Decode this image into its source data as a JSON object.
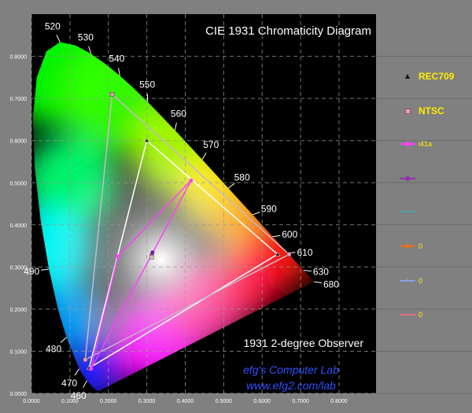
{
  "chart_data": {
    "type": "scatter",
    "title": "CIE 1931 Chromaticity Diagram",
    "subtitle": "1931 2-degree Observer",
    "credit": "efg's Computer Lab",
    "credit_url": "www.efg2.com/lab",
    "x_ticks": [
      "0.0000",
      "0.1000",
      "0.2000",
      "0.3000",
      "0.4000",
      "0.5000",
      "0.6000",
      "0.7000",
      "0.8000"
    ],
    "y_ticks": [
      "0.0000",
      "0.1000",
      "0.2000",
      "0.3000",
      "0.4000",
      "0.5000",
      "0.6000",
      "0.7000",
      "0.8000"
    ],
    "xlim": [
      0,
      0.85
    ],
    "ylim": [
      0,
      0.85
    ],
    "grid": true,
    "wavelength_labels": [
      {
        "label": "460",
        "x": 0.144,
        "y": 0.03
      },
      {
        "label": "470",
        "x": 0.124,
        "y": 0.058
      },
      {
        "label": "480",
        "x": 0.091,
        "y": 0.133
      },
      {
        "label": "490",
        "x": 0.045,
        "y": 0.295
      },
      {
        "label": "520",
        "x": 0.074,
        "y": 0.834
      },
      {
        "label": "530",
        "x": 0.155,
        "y": 0.806
      },
      {
        "label": "540",
        "x": 0.23,
        "y": 0.754
      },
      {
        "label": "550",
        "x": 0.302,
        "y": 0.692
      },
      {
        "label": "560",
        "x": 0.373,
        "y": 0.624
      },
      {
        "label": "570",
        "x": 0.444,
        "y": 0.555
      },
      {
        "label": "580",
        "x": 0.512,
        "y": 0.487
      },
      {
        "label": "590",
        "x": 0.575,
        "y": 0.424
      },
      {
        "label": "600",
        "x": 0.627,
        "y": 0.372
      },
      {
        "label": "610",
        "x": 0.666,
        "y": 0.334
      },
      {
        "label": "630",
        "x": 0.708,
        "y": 0.292
      },
      {
        "label": "680",
        "x": 0.735,
        "y": 0.265
      }
    ],
    "locus": [
      [
        0.1741,
        0.005
      ],
      [
        0.173,
        0.0048
      ],
      [
        0.1666,
        0.0089
      ],
      [
        0.1566,
        0.0177
      ],
      [
        0.144,
        0.0297
      ],
      [
        0.1241,
        0.0578
      ],
      [
        0.0913,
        0.1327
      ],
      [
        0.0687,
        0.2007
      ],
      [
        0.0454,
        0.295
      ],
      [
        0.0235,
        0.4127
      ],
      [
        0.0082,
        0.5384
      ],
      [
        0.0039,
        0.6548
      ],
      [
        0.0139,
        0.7502
      ],
      [
        0.0389,
        0.812
      ],
      [
        0.0743,
        0.8338
      ],
      [
        0.1142,
        0.8262
      ],
      [
        0.1547,
        0.8059
      ],
      [
        0.1929,
        0.7816
      ],
      [
        0.2296,
        0.7543
      ],
      [
        0.2658,
        0.7243
      ],
      [
        0.3016,
        0.6923
      ],
      [
        0.3373,
        0.6589
      ],
      [
        0.3731,
        0.6245
      ],
      [
        0.4087,
        0.5896
      ],
      [
        0.4441,
        0.5547
      ],
      [
        0.4788,
        0.5202
      ],
      [
        0.5125,
        0.4866
      ],
      [
        0.5448,
        0.4544
      ],
      [
        0.5752,
        0.4242
      ],
      [
        0.6029,
        0.3965
      ],
      [
        0.627,
        0.3725
      ],
      [
        0.6482,
        0.3514
      ],
      [
        0.6658,
        0.334
      ],
      [
        0.6801,
        0.3197
      ],
      [
        0.6915,
        0.3083
      ],
      [
        0.7006,
        0.2993
      ],
      [
        0.7079,
        0.292
      ],
      [
        0.714,
        0.2859
      ],
      [
        0.719,
        0.2809
      ],
      [
        0.723,
        0.277
      ],
      [
        0.726,
        0.274
      ],
      [
        0.7283,
        0.2717
      ],
      [
        0.73,
        0.27
      ],
      [
        0.732,
        0.268
      ],
      [
        0.7347,
        0.2653
      ]
    ],
    "series": [
      {
        "name": "REC709",
        "color": "#ffffff",
        "points": [
          [
            0.64,
            0.33
          ],
          [
            0.3,
            0.6
          ],
          [
            0.15,
            0.06
          ]
        ],
        "marker": "triangle",
        "closed": true
      },
      {
        "name": "NTSC",
        "color": "#c8b8c8",
        "points": [
          [
            0.67,
            0.33
          ],
          [
            0.21,
            0.71
          ],
          [
            0.14,
            0.08
          ]
        ],
        "marker": "square",
        "closed": true
      },
      {
        "name": "i41a",
        "color": "#ff40ff",
        "points": [
          [
            0.415,
            0.505
          ],
          [
            0.225,
            0.325
          ],
          [
            0.155,
            0.058
          ]
        ],
        "marker": "dot",
        "closed": true
      },
      {
        "name": "",
        "color": "#9030b0",
        "points": [
          [
            0.313,
            0.329
          ]
        ],
        "marker": "dot",
        "closed": false
      },
      {
        "name": "",
        "color": "#4fa0a8",
        "points": [],
        "marker": "none",
        "closed": false
      },
      {
        "name": "0",
        "color": "#e07020",
        "points": [],
        "marker": "dot",
        "closed": false
      },
      {
        "name": "0",
        "color": "#8aa0e0",
        "points": [],
        "marker": "cross",
        "closed": false
      },
      {
        "name": "0",
        "color": "#e07080",
        "points": [],
        "marker": "none",
        "closed": false
      }
    ],
    "white_point": {
      "x": 0.3127,
      "y": 0.329
    },
    "legend_position": "right"
  }
}
